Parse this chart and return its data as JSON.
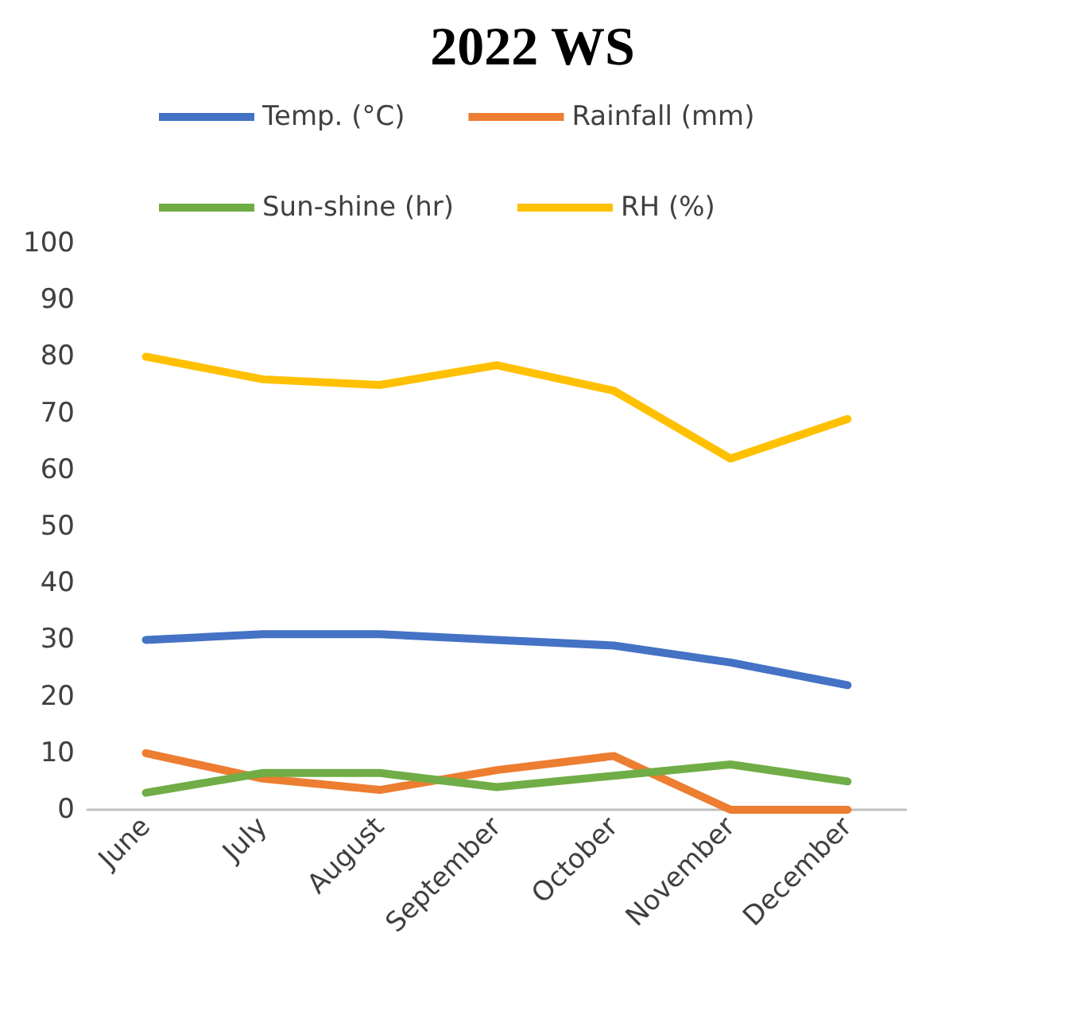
{
  "chart_data": {
    "type": "line",
    "title": "2022 WS",
    "categories": [
      "June",
      "July",
      "August",
      "September",
      "October",
      "November",
      "December"
    ],
    "series": [
      {
        "name": "Temp. (°C)",
        "color": "#4472c4",
        "values": [
          30,
          31,
          31,
          30,
          29,
          26,
          22
        ]
      },
      {
        "name": "Rainfall (mm)",
        "color": "#ed7d31",
        "values": [
          10,
          5.5,
          3.5,
          7,
          9.5,
          0,
          0
        ]
      },
      {
        "name": "Sun-shine (hr)",
        "color": "#70ad47",
        "values": [
          3,
          6.5,
          6.5,
          4,
          6,
          8,
          5
        ]
      },
      {
        "name": "RH (%)",
        "color": "#ffc000",
        "values": [
          80,
          76,
          75,
          78.5,
          74,
          62,
          69
        ]
      }
    ],
    "ylim": [
      0,
      100
    ],
    "yticks": [
      0,
      10,
      20,
      30,
      40,
      50,
      60,
      70,
      80,
      90,
      100
    ],
    "grid": false,
    "legend": "top",
    "marker": "none",
    "line_style": "solid"
  }
}
